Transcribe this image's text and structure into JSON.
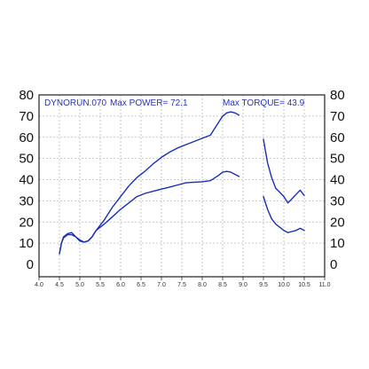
{
  "chart_data": {
    "type": "line",
    "header": {
      "run_label": "DYNORUN.070",
      "power_label": "Max POWER= 72.1",
      "torque_label": "Max TORQUE= 43.9"
    },
    "x_ticks": [
      "4.0",
      "4.5",
      "5.0",
      "5.5",
      "6.0",
      "6.5",
      "7.0",
      "7.5",
      "8.0",
      "8.5",
      "9.0",
      "9.5",
      "10.0",
      "10.5",
      "11.0"
    ],
    "y_ticks": [
      "0",
      "10",
      "20",
      "30",
      "40",
      "50",
      "60",
      "70",
      "80"
    ],
    "xlim": [
      4.0,
      11.0
    ],
    "ylim": [
      0,
      80
    ],
    "grid": true,
    "colors": {
      "series": "#1a2fb8",
      "grid": "#b8b8b8",
      "frame": "#222222"
    },
    "series": [
      {
        "x": [
          4.5,
          4.55,
          4.6,
          4.7,
          4.8,
          4.9,
          5.0,
          5.1,
          5.2,
          5.3,
          5.4,
          5.6,
          5.8,
          6.0,
          6.2,
          6.4,
          6.6,
          6.8,
          7.0,
          7.2,
          7.4,
          7.6,
          7.8,
          8.0,
          8.2,
          8.4,
          8.5,
          8.6,
          8.7,
          8.8,
          8.9
        ],
        "y": [
          5,
          10,
          13,
          14.5,
          15,
          13,
          11,
          10.5,
          11,
          13,
          16,
          21,
          27,
          32,
          37,
          41,
          44,
          47.5,
          50.5,
          53,
          55,
          56.5,
          58,
          59.5,
          61,
          67,
          70,
          71.5,
          72,
          71.5,
          70.5
        ]
      },
      {
        "x": [
          4.5,
          4.55,
          4.6,
          4.7,
          4.8,
          4.9,
          5.0,
          5.1,
          5.2,
          5.3,
          5.4,
          5.6,
          5.8,
          6.0,
          6.2,
          6.4,
          6.6,
          6.8,
          7.0,
          7.2,
          7.4,
          7.6,
          7.8,
          8.0,
          8.2,
          8.4,
          8.5,
          8.6,
          8.7,
          8.8,
          8.9
        ],
        "y": [
          5,
          10,
          12.5,
          14,
          14,
          13,
          11.5,
          10.5,
          11,
          13,
          16,
          19,
          22.5,
          26,
          29,
          32,
          33.5,
          34.5,
          35.5,
          36.5,
          37.5,
          38.5,
          38.8,
          39,
          39.5,
          42,
          43.5,
          43.9,
          43.5,
          42.5,
          41.5
        ]
      },
      {
        "x": [
          9.5,
          9.6,
          9.7,
          9.8,
          9.9,
          10.0,
          10.1,
          10.2,
          10.3,
          10.4,
          10.5
        ],
        "y": [
          59,
          48,
          41,
          36,
          34,
          32,
          29,
          31,
          33,
          35,
          32.5
        ]
      },
      {
        "x": [
          9.5,
          9.6,
          9.7,
          9.8,
          9.9,
          10.0,
          10.1,
          10.2,
          10.3,
          10.4,
          10.5
        ],
        "y": [
          32,
          26,
          21.5,
          19,
          17.5,
          16,
          15,
          15.5,
          16,
          17,
          16
        ]
      }
    ]
  }
}
